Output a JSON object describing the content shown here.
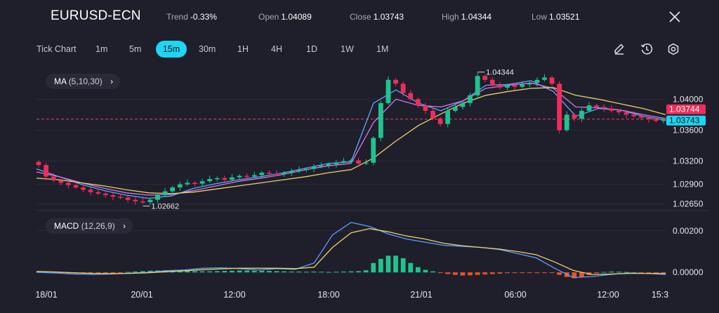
{
  "header": {
    "symbol": "EURUSD-ECN",
    "trend_label": "Trend",
    "trend_value": "-0.33%",
    "open_label": "Open",
    "open_value": "1.04089",
    "close_label": "Close",
    "close_value": "1.03743",
    "high_label": "High",
    "high_value": "1.04344",
    "low_label": "Low",
    "low_value": "1.03521"
  },
  "timeframes": {
    "tick": "Tick Chart",
    "items": [
      "1m",
      "5m",
      "15m",
      "30m",
      "1H",
      "4H",
      "1D",
      "1W",
      "1M"
    ],
    "active": "15m"
  },
  "tools": [
    "pencil-icon",
    "history-icon",
    "settings-icon"
  ],
  "indicators": {
    "ma": {
      "name": "MA",
      "params": "(5,10,30)"
    },
    "macd": {
      "name": "MACD",
      "params": "(12,26,9)"
    }
  },
  "chart_data": [
    {
      "type": "candlestick",
      "ylim": [
        1.0258,
        1.0442
      ],
      "yticks": [
        "1.04000",
        "1.03600",
        "1.03200",
        "1.02900",
        "1.02650"
      ],
      "price_labels": {
        "current": "1.03744",
        "close": "1.03743"
      },
      "annotations": {
        "high": "1.04344",
        "low": "1.02662"
      },
      "xticks": [
        "18/01",
        "20/01",
        "12:00",
        "18:00",
        "21/01",
        "06:00",
        "12:00",
        "15:3"
      ],
      "path": [
        1.0315,
        1.03,
        1.0295,
        1.0292,
        1.0289,
        1.0286,
        1.0283,
        1.028,
        1.0278,
        1.0276,
        1.0274,
        1.0273,
        1.027,
        1.0268,
        1.0267,
        1.027,
        1.0276,
        1.0281,
        1.0286,
        1.029,
        1.0292,
        1.0291,
        1.0294,
        1.0297,
        1.0298,
        1.0296,
        1.0299,
        1.0301,
        1.03,
        1.0302,
        1.0305,
        1.0304,
        1.0303,
        1.0305,
        1.0307,
        1.0309,
        1.031,
        1.0313,
        1.0314,
        1.0316,
        1.0318,
        1.032,
        1.0321,
        1.0317,
        1.0318,
        1.035,
        1.0395,
        1.0425,
        1.042,
        1.0408,
        1.04,
        1.0392,
        1.0385,
        1.0375,
        1.0368,
        1.0385,
        1.039,
        1.0395,
        1.0405,
        1.043,
        1.0425,
        1.0418,
        1.0415,
        1.0418,
        1.0416,
        1.0419,
        1.0421,
        1.0425,
        1.0428,
        1.042,
        1.036,
        1.038,
        1.0375,
        1.0385,
        1.0392,
        1.039,
        1.0388,
        1.0385,
        1.0383,
        1.038,
        1.0378,
        1.0376,
        1.0374,
        1.0372,
        1.0374
      ],
      "ma": {
        "ma5": [
          1.031,
          1.03,
          1.029,
          1.0282,
          1.0276,
          1.0272,
          1.0275,
          1.0285,
          1.0291,
          1.0296,
          1.03,
          1.0305,
          1.0311,
          1.0317,
          1.0319,
          1.0395,
          1.0412,
          1.0395,
          1.0385,
          1.0398,
          1.0418,
          1.0419,
          1.0424,
          1.041,
          1.0378,
          1.0388,
          1.0386,
          1.0378,
          1.0373
        ],
        "ma10": [
          1.0306,
          1.03,
          1.0292,
          1.0285,
          1.0279,
          1.0276,
          1.0277,
          1.0282,
          1.0288,
          1.0294,
          1.0298,
          1.0303,
          1.0309,
          1.0314,
          1.0317,
          1.037,
          1.04,
          1.0392,
          1.039,
          1.0398,
          1.0414,
          1.0418,
          1.0421,
          1.0414,
          1.039,
          1.0389,
          1.0386,
          1.038,
          1.0375
        ],
        "ma30": [
          1.0298,
          1.0296,
          1.0292,
          1.0288,
          1.0283,
          1.0279,
          1.0278,
          1.028,
          1.0284,
          1.0288,
          1.0292,
          1.0296,
          1.03,
          1.0305,
          1.0309,
          1.0324,
          1.0346,
          1.0366,
          1.0381,
          1.0395,
          1.0405,
          1.041,
          1.0414,
          1.0415,
          1.0405,
          1.04,
          1.0394,
          1.0388,
          1.038
        ]
      }
    },
    {
      "type": "macd",
      "yticks": [
        "0.00200",
        "0.00000"
      ],
      "ylim": [
        -0.0004,
        0.0027
      ],
      "hist": [
        2e-05,
        2e-05,
        0.0,
        -3e-05,
        -5e-05,
        -5e-05,
        -4e-05,
        -3e-05,
        -2e-05,
        -3e-05,
        -4e-05,
        -2e-05,
        2e-05,
        4e-05,
        6e-05,
        8e-05,
        9e-05,
        0.0001,
        0.0001,
        8e-05,
        7e-05,
        6e-05,
        5e-05,
        5e-05,
        6e-05,
        7e-05,
        8e-05,
        9e-05,
        9e-05,
        8e-05,
        8e-05,
        7e-05,
        6e-05,
        5e-05,
        4e-05,
        4e-05,
        3e-05,
        4e-05,
        3e-05,
        2e-05,
        3e-05,
        4e-05,
        5e-05,
        6e-05,
        0.0001,
        0.00045,
        0.00065,
        0.0008,
        0.0008,
        0.00068,
        0.00045,
        0.00025,
        0.00012,
        5e-05,
        -3e-05,
        -8e-05,
        -0.00012,
        -0.00015,
        -0.00014,
        -0.00012,
        -0.0001,
        -8e-05,
        -6e-05,
        -4e-05,
        -3e-05,
        -2e-05,
        -2e-05,
        -2e-05,
        -2e-05,
        -3e-05,
        -0.00012,
        -0.00022,
        -0.00028,
        -0.00022,
        -0.00012,
        -4e-05,
        2e-05,
        4e-05,
        3e-05,
        2e-05,
        0.0,
        -2e-05,
        -3e-05,
        -3e-05,
        -3e-05
      ],
      "macd": [
        0.0,
        -3e-05,
        -8e-05,
        -0.0001,
        -8e-05,
        -4e-05,
        0.0,
        8e-05,
        0.00012,
        0.0002,
        0.00022,
        0.00018,
        0.00012,
        0.00018,
        0.00015,
        0.00045,
        0.0018,
        0.0024,
        0.0022,
        0.00185,
        0.0016,
        0.00145,
        0.0013,
        0.00125,
        0.0012,
        0.0011,
        0.0009,
        0.0007,
        0.0002,
        -0.00025,
        -0.0002,
        -0.0001,
        -3e-05,
        -5e-05,
        -0.0001
      ],
      "signal": [
        5e-05,
        2e-05,
        -2e-05,
        -5e-05,
        -6e-05,
        -5e-05,
        -2e-05,
        3e-05,
        8e-05,
        0.00013,
        0.00017,
        0.0002,
        0.0002,
        0.0002,
        0.00018,
        0.00025,
        0.0012,
        0.0019,
        0.0021,
        0.00195,
        0.00175,
        0.0016,
        0.0014,
        0.00128,
        0.0012,
        0.00112,
        0.001,
        0.00085,
        0.0005,
        0.0001,
        -0.0001,
        -8e-05,
        -5e-05,
        -5e-05,
        -6e-05
      ]
    }
  ]
}
